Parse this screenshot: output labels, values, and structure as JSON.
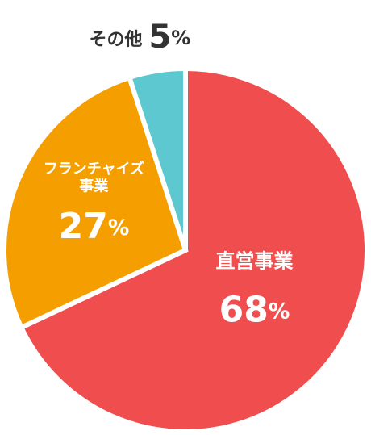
{
  "chart_data": {
    "type": "pie",
    "categories": [
      "直営事業",
      "フランチャイズ\n事業",
      "その他"
    ],
    "values": [
      68,
      27,
      5
    ],
    "value_labels": [
      "68%",
      "27%",
      "5%"
    ],
    "colors": [
      "#f04e4e",
      "#f59e00",
      "#5ec8d0"
    ]
  }
}
